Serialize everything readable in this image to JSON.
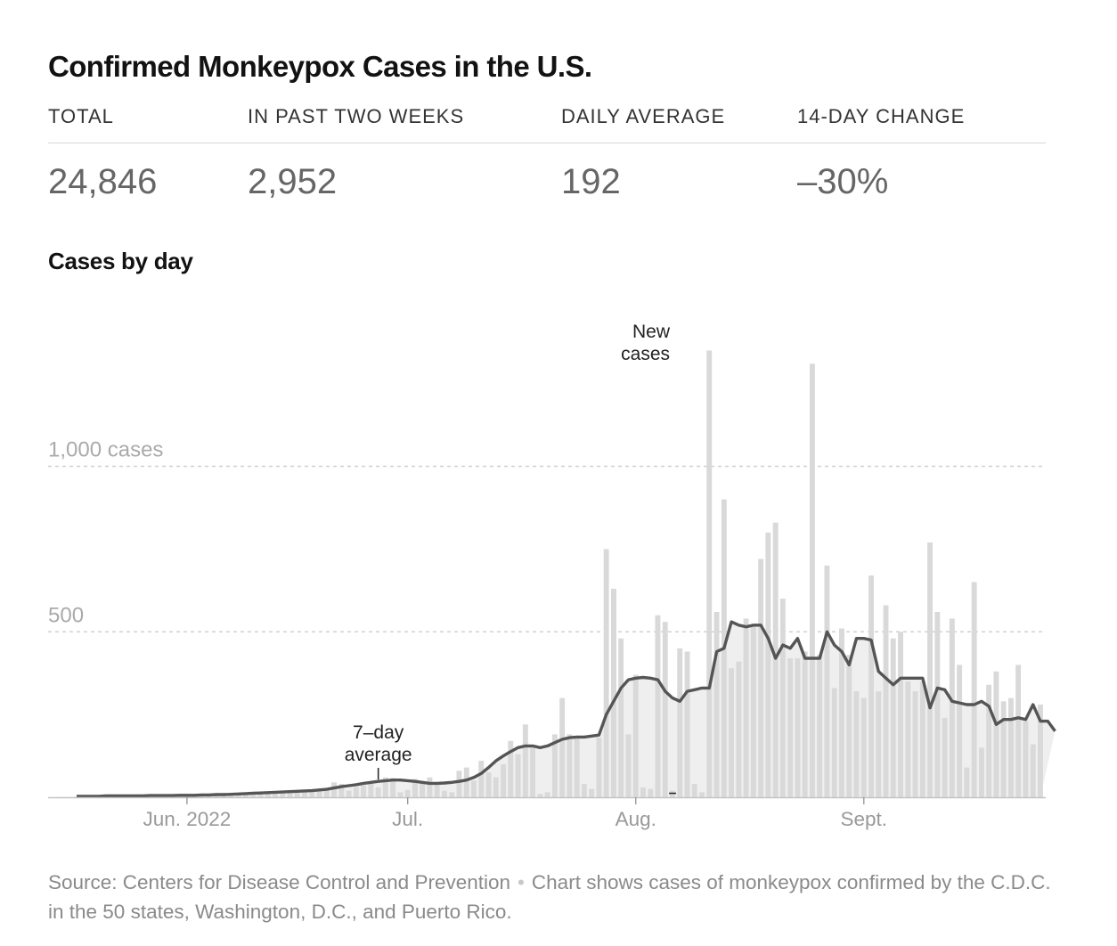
{
  "title": "Confirmed Monkeypox Cases in the U.S.",
  "stats": [
    {
      "label": "Total",
      "value": "24,846"
    },
    {
      "label": "In past two weeks",
      "value": "2,952"
    },
    {
      "label": "Daily average",
      "value": "192"
    },
    {
      "label": "14-day change",
      "value": "–30%"
    }
  ],
  "subtitle": "Cases by day",
  "footer": {
    "source": "Source: Centers for Disease Control and Prevention",
    "note": "Chart shows cases of monkeypox confirmed by the C.D.C. in the 50 states, Washington, D.C., and Puerto Rico."
  },
  "colors": {
    "bar": "#d9d9d9",
    "area": "#efefef",
    "line": "#555555",
    "grid": "#d0d0d0",
    "axis_text": "#999999"
  },
  "chart_data": {
    "type": "bar",
    "x_start": "2022-05-17",
    "x_end": "2022-09-23",
    "yticks": [
      {
        "value": 500,
        "label": "500"
      },
      {
        "value": 1000,
        "label": "1,000 cases"
      }
    ],
    "xticks": [
      {
        "date": "2022-06-01",
        "label": "Jun. 2022"
      },
      {
        "date": "2022-07-01",
        "label": "Jul."
      },
      {
        "date": "2022-08-01",
        "label": "Aug."
      },
      {
        "date": "2022-09-01",
        "label": "Sept."
      }
    ],
    "annotations": [
      {
        "label_lines": [
          "New",
          "cases"
        ],
        "date": "2022-08-06"
      },
      {
        "label_lines": [
          "7–day",
          "average"
        ],
        "date": "2022-06-27"
      }
    ],
    "series": [
      {
        "name": "New cases",
        "kind": "bar",
        "values": [
          1,
          1,
          0,
          2,
          1,
          1,
          2,
          1,
          2,
          2,
          1,
          2,
          3,
          2,
          2,
          3,
          4,
          3,
          5,
          4,
          3,
          6,
          5,
          8,
          6,
          10,
          12,
          15,
          18,
          14,
          15,
          20,
          18,
          22,
          25,
          45,
          40,
          20,
          30,
          35,
          45,
          30,
          60,
          58,
          15,
          22,
          55,
          48,
          60,
          45,
          20,
          15,
          80,
          90,
          50,
          110,
          75,
          60,
          100,
          170,
          130,
          220,
          150,
          10,
          15,
          190,
          300,
          190,
          180,
          40,
          25,
          180,
          750,
          630,
          480,
          190,
          370,
          30,
          25,
          550,
          530,
          20,
          450,
          440,
          40,
          15,
          1350,
          560,
          900,
          390,
          410,
          540,
          520,
          720,
          800,
          830,
          600,
          420,
          420,
          440,
          1310,
          430,
          700,
          330,
          510,
          430,
          320,
          300,
          670,
          320,
          580,
          480,
          500,
          350,
          320,
          350,
          770,
          560,
          240,
          540,
          400,
          90,
          650,
          150,
          340,
          380,
          290,
          300,
          400,
          230,
          160,
          280
        ]
      },
      {
        "name": "7-day average",
        "kind": "line",
        "values": [
          3,
          3,
          3,
          3,
          4,
          4,
          4,
          4,
          4,
          4,
          5,
          5,
          5,
          5,
          6,
          6,
          6,
          7,
          7,
          8,
          8,
          9,
          10,
          11,
          12,
          13,
          14,
          15,
          16,
          17,
          18,
          19,
          20,
          22,
          24,
          28,
          32,
          35,
          38,
          42,
          45,
          48,
          50,
          52,
          52,
          50,
          48,
          45,
          42,
          42,
          43,
          45,
          48,
          52,
          60,
          72,
          90,
          110,
          125,
          138,
          150,
          155,
          155,
          150,
          155,
          165,
          175,
          180,
          182,
          182,
          185,
          188,
          250,
          290,
          330,
          355,
          360,
          362,
          360,
          355,
          320,
          300,
          290,
          320,
          325,
          330,
          330,
          440,
          450,
          530,
          520,
          515,
          520,
          520,
          480,
          420,
          460,
          450,
          480,
          420,
          420,
          420,
          500,
          460,
          440,
          400,
          480,
          480,
          475,
          380,
          360,
          340,
          360,
          360,
          360,
          360,
          270,
          330,
          325,
          290,
          285,
          280,
          280,
          290,
          275,
          220,
          235,
          235,
          240,
          235,
          280,
          230,
          230,
          200
        ]
      }
    ]
  }
}
